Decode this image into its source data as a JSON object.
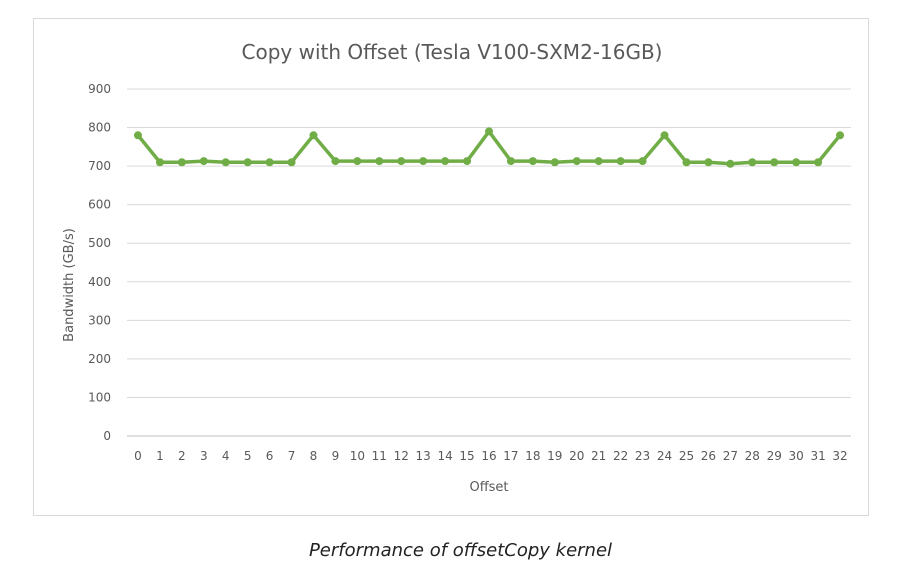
{
  "caption": "Performance of offsetCopy kernel",
  "chart_data": {
    "type": "line",
    "title": "Copy with Offset (Tesla V100-SXM2-16GB)",
    "xlabel": "Offset",
    "ylabel": "Bandwidth (GB/s)",
    "ylim": [
      0,
      900
    ],
    "yticks": [
      0,
      100,
      200,
      300,
      400,
      500,
      600,
      700,
      800,
      900
    ],
    "grid": true,
    "legend": "none",
    "categories": [
      "0",
      "1",
      "2",
      "3",
      "4",
      "5",
      "6",
      "7",
      "8",
      "9",
      "10",
      "11",
      "12",
      "13",
      "14",
      "15",
      "16",
      "17",
      "18",
      "19",
      "20",
      "21",
      "22",
      "23",
      "24",
      "25",
      "26",
      "27",
      "28",
      "29",
      "30",
      "31",
      "32"
    ],
    "series": [
      {
        "color": "#70ad47",
        "values": [
          780,
          710,
          710,
          713,
          710,
          710,
          710,
          710,
          780,
          713,
          713,
          713,
          713,
          713,
          713,
          713,
          790,
          713,
          713,
          710,
          713,
          713,
          713,
          713,
          780,
          710,
          710,
          706,
          710,
          710,
          710,
          710,
          780
        ]
      }
    ]
  }
}
